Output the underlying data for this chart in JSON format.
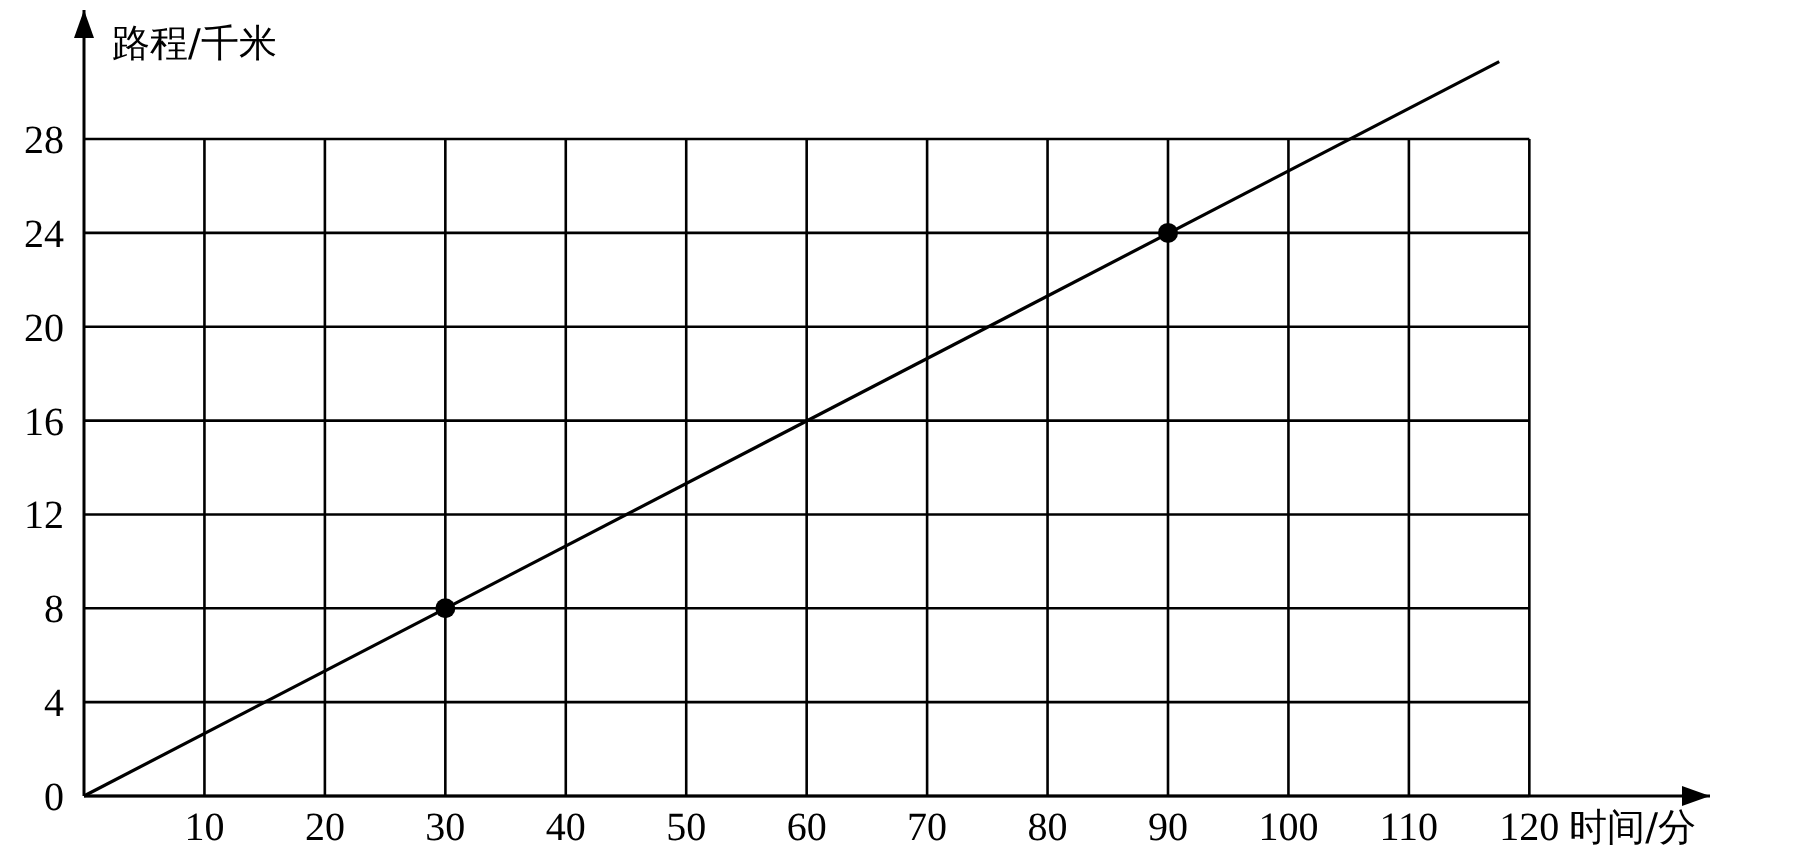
{
  "chart_data": {
    "type": "line",
    "xlabel": "时间/分",
    "ylabel": "路程/千米",
    "xlim": [
      0,
      135
    ],
    "ylim": [
      0,
      33.5
    ],
    "xticks": [
      10,
      20,
      30,
      40,
      50,
      60,
      70,
      80,
      90,
      100,
      110,
      120
    ],
    "yticks": [
      0,
      4,
      8,
      12,
      16,
      20,
      24,
      28
    ],
    "series": [
      {
        "color": "#000000",
        "x": [
          0,
          117.5
        ],
        "values": [
          0,
          31.3
        ],
        "marker": "none"
      },
      {
        "type": "scatter",
        "color": "#000000",
        "x": [
          30,
          90
        ],
        "values": [
          8,
          24
        ],
        "marker": "circle"
      }
    ],
    "grid": true
  }
}
